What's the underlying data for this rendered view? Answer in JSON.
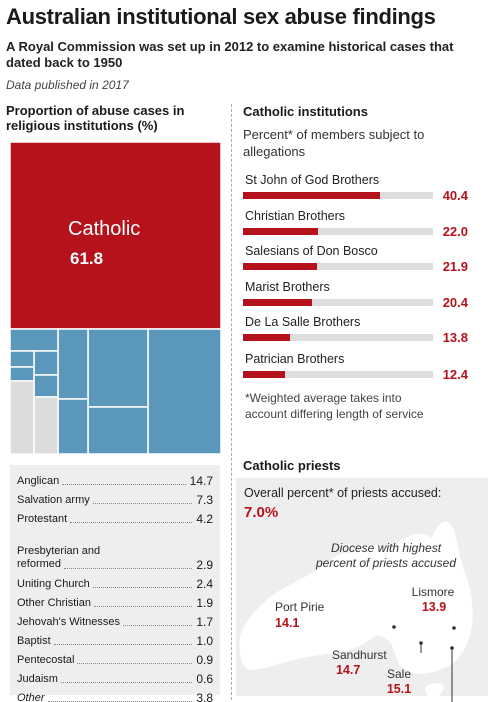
{
  "header": {
    "title": "Australian institutional sex abuse findings",
    "subtitle": "A Royal Commission was set up in 2012 to examine historical cases that dated back to 1950",
    "published": "Data published in 2017"
  },
  "treemap": {
    "heading": "Proportion of abuse cases in religious institutions (%)",
    "main_label": "Catholic",
    "main_value": "61.8",
    "colors": {
      "catholic": "#b5121b",
      "other": "#5b97ba",
      "other_italic": "#dcdcdc"
    }
  },
  "legend": {
    "items": [
      {
        "name": "Anglican",
        "value": "14.7"
      },
      {
        "name": "Salvation army",
        "value": "7.3"
      },
      {
        "name": "Protestant",
        "value": "4.2"
      },
      {
        "name": "Presbyterian and\nreformed",
        "value": "2.9"
      },
      {
        "name": "Uniting Church",
        "value": "2.4"
      },
      {
        "name": "Other Christian",
        "value": "1.9"
      },
      {
        "name": "Jehovah's Witnesses",
        "value": "1.7"
      },
      {
        "name": "Baptist",
        "value": "1.0"
      },
      {
        "name": "Pentecostal",
        "value": "0.9"
      },
      {
        "name": "Judaism",
        "value": "0.6"
      },
      {
        "name": "Other",
        "value": "3.8"
      }
    ]
  },
  "catholic_institutions": {
    "heading": "Catholic institutions",
    "subheading": "Percent* of members subject to allegations",
    "footnote": "*Weighted average takes into account differing length of service"
  },
  "chart_data": [
    {
      "type": "treemap",
      "title": "Proportion of abuse cases in religious institutions (%)",
      "categories": [
        "Catholic",
        "Anglican",
        "Salvation army",
        "Protestant",
        "Presbyterian and reformed",
        "Uniting Church",
        "Other Christian",
        "Jehovah's Witnesses",
        "Baptist",
        "Pentecostal",
        "Judaism",
        "Other"
      ],
      "values": [
        61.8,
        14.7,
        7.3,
        4.2,
        2.9,
        2.4,
        1.9,
        1.7,
        1.0,
        0.9,
        0.6,
        3.8
      ]
    },
    {
      "type": "bar",
      "title": "Catholic institutions",
      "subtitle": "Percent* of members subject to allegations",
      "categories": [
        "St John of God Brothers",
        "Christian Brothers",
        "Salesians of Don Bosco",
        "Marist Brothers",
        "De La Salle Brothers",
        "Patrician Brothers"
      ],
      "values": [
        40.4,
        22.0,
        21.9,
        20.4,
        13.8,
        12.4
      ],
      "value_labels": [
        "40.4",
        "22.0",
        "21.9",
        "20.4",
        "13.8",
        "12.4"
      ],
      "xlim": [
        0,
        56
      ],
      "bar_color": "#b5121b",
      "track_color": "#dddddd"
    },
    {
      "type": "map",
      "title": "Catholic priests",
      "label": "Overall percent* of priests accused:",
      "overall": "7.0%",
      "caption": "Diocese with highest percent of priests accused",
      "dioceses": [
        {
          "name": "Port Pirie",
          "value": "14.1"
        },
        {
          "name": "Lismore",
          "value": "13.9"
        },
        {
          "name": "Sandhurst",
          "value": "14.7"
        },
        {
          "name": "Sale",
          "value": "15.1"
        }
      ]
    }
  ]
}
